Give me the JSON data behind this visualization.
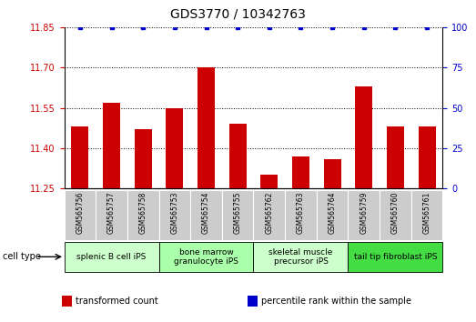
{
  "title": "GDS3770 / 10342763",
  "samples": [
    "GSM565756",
    "GSM565757",
    "GSM565758",
    "GSM565753",
    "GSM565754",
    "GSM565755",
    "GSM565762",
    "GSM565763",
    "GSM565764",
    "GSM565759",
    "GSM565760",
    "GSM565761"
  ],
  "bar_values": [
    11.48,
    11.57,
    11.47,
    11.55,
    11.7,
    11.49,
    11.3,
    11.37,
    11.36,
    11.63,
    11.48,
    11.48
  ],
  "bar_color": "#cc0000",
  "percentile_color": "#0000cc",
  "ylim_left": [
    11.25,
    11.85
  ],
  "ylim_right": [
    0,
    100
  ],
  "yticks_left": [
    11.25,
    11.4,
    11.55,
    11.7,
    11.85
  ],
  "yticks_right": [
    0,
    25,
    50,
    75,
    100
  ],
  "left_tick_color": "#cc0000",
  "right_tick_color": "#0000cc",
  "cell_types": [
    {
      "label": "splenic B cell iPS",
      "start": 0,
      "end": 3,
      "color": "#ccffcc"
    },
    {
      "label": "bone marrow\ngranulocyte iPS",
      "start": 3,
      "end": 6,
      "color": "#aaffaa"
    },
    {
      "label": "skeletal muscle\nprecursor iPS",
      "start": 6,
      "end": 9,
      "color": "#ccffcc"
    },
    {
      "label": "tail tip fibroblast iPS",
      "start": 9,
      "end": 12,
      "color": "#44dd44"
    }
  ],
  "cell_type_label": "cell type",
  "legend_items": [
    {
      "label": "transformed count",
      "color": "#cc0000"
    },
    {
      "label": "percentile rank within the sample",
      "color": "#0000cc"
    }
  ],
  "grid_color": "#000000",
  "sample_box_color": "#cccccc"
}
